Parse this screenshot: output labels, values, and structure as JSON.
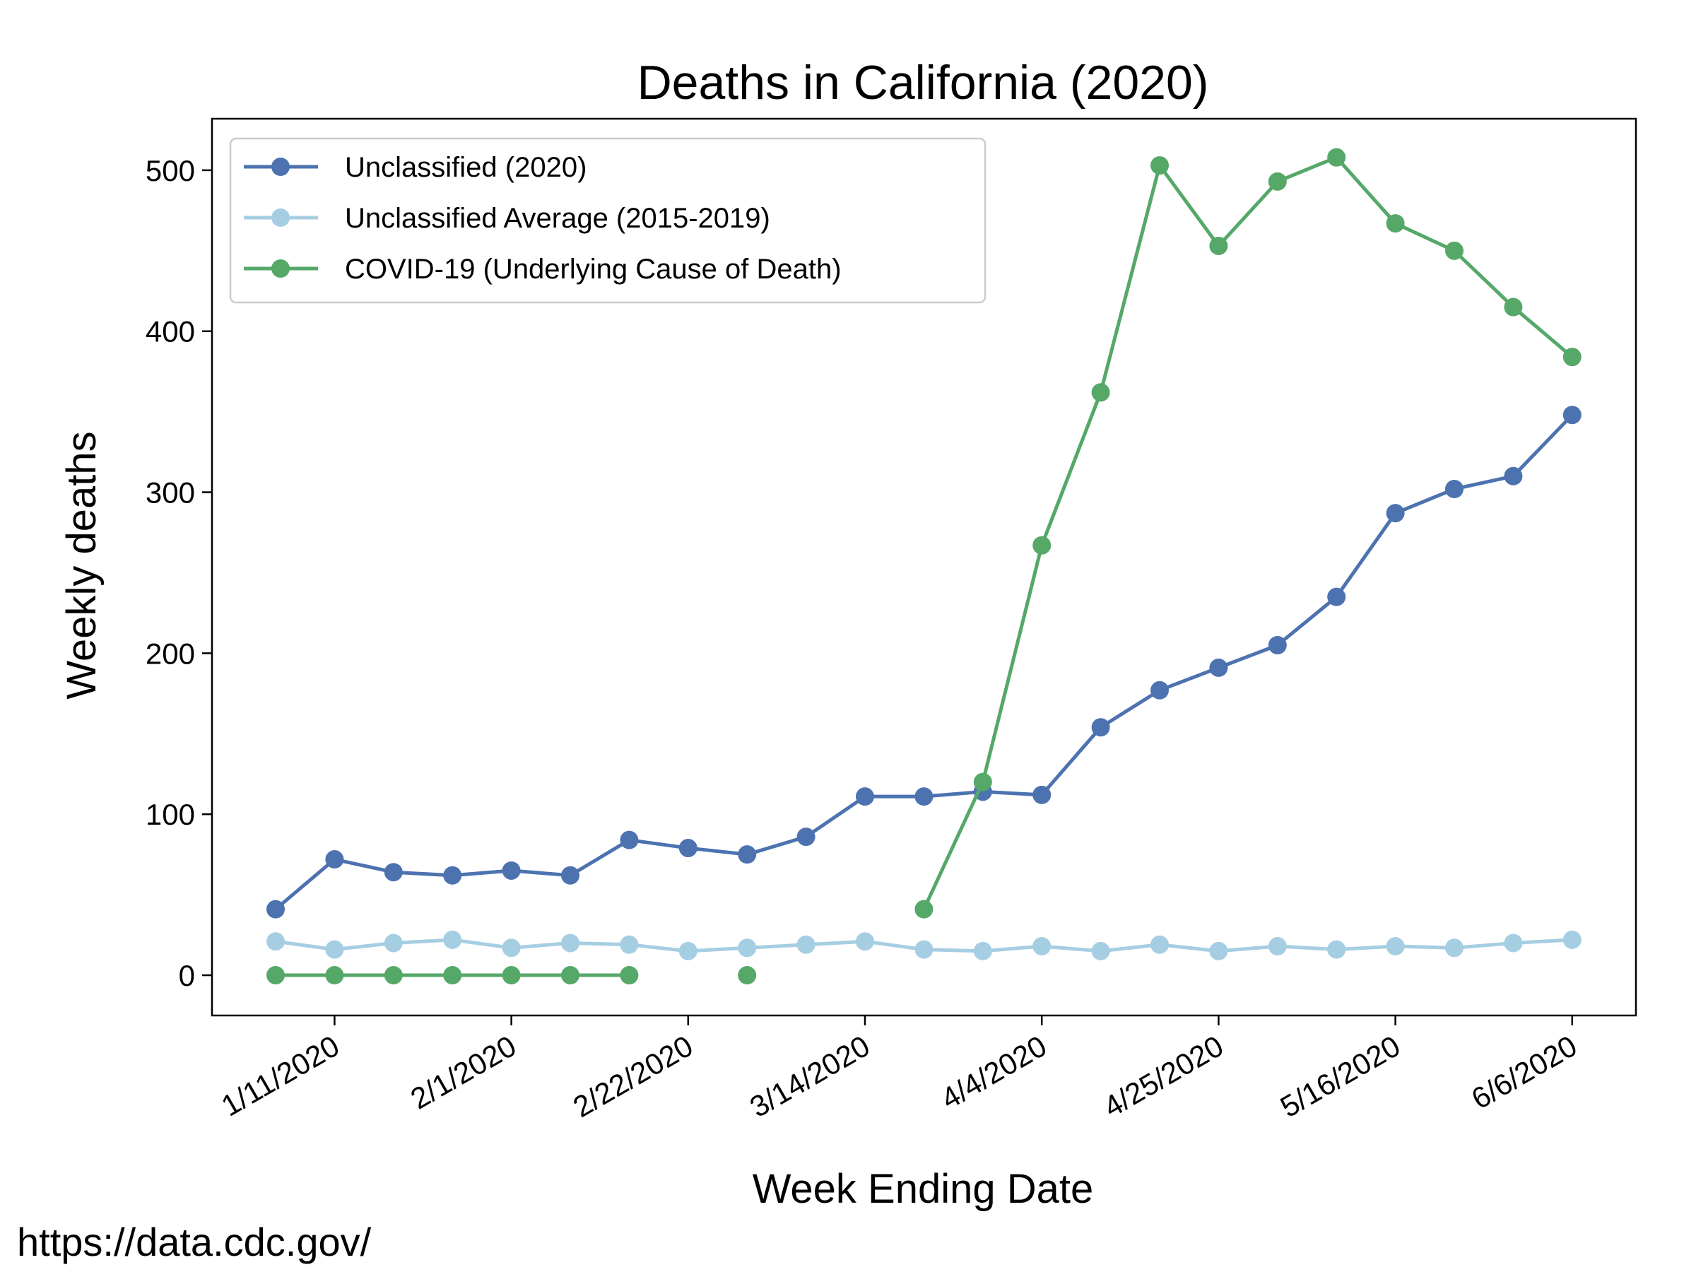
{
  "source_text": "https://data.cdc.gov/",
  "chart_data": {
    "type": "line",
    "title": "Deaths in California (2020)",
    "xlabel": "Week Ending Date",
    "ylabel": "Weekly deaths",
    "x": [
      "1/4/2020",
      "1/11/2020",
      "1/18/2020",
      "1/25/2020",
      "2/1/2020",
      "2/8/2020",
      "2/15/2020",
      "2/22/2020",
      "2/29/2020",
      "3/7/2020",
      "3/14/2020",
      "3/21/2020",
      "3/28/2020",
      "4/4/2020",
      "4/11/2020",
      "4/18/2020",
      "4/25/2020",
      "5/2/2020",
      "5/9/2020",
      "5/16/2020",
      "5/23/2020",
      "5/30/2020",
      "6/6/2020"
    ],
    "xticks": [
      "1/11/2020",
      "2/1/2020",
      "2/22/2020",
      "3/14/2020",
      "4/4/2020",
      "4/25/2020",
      "5/16/2020",
      "6/6/2020"
    ],
    "ylim": [
      -25,
      532
    ],
    "yticks": [
      0,
      100,
      200,
      300,
      400,
      500
    ],
    "grid": false,
    "legend_position": "upper-left",
    "series": [
      {
        "name": "Unclassified (2020)",
        "color": "#4c72b0",
        "values": [
          41,
          72,
          64,
          62,
          65,
          62,
          84,
          79,
          75,
          86,
          111,
          111,
          114,
          112,
          154,
          177,
          191,
          205,
          235,
          287,
          302,
          310,
          348
        ]
      },
      {
        "name": "Unclassified Average (2015-2019)",
        "color": "#a6cee3",
        "values": [
          21,
          16,
          20,
          22,
          17,
          20,
          19,
          15,
          17,
          19,
          21,
          16,
          15,
          18,
          15,
          19,
          15,
          18,
          16,
          18,
          17,
          20,
          22
        ]
      },
      {
        "name": "COVID-19 (Underlying Cause of Death)",
        "color": "#55a868",
        "values": [
          0,
          0,
          0,
          0,
          0,
          0,
          0,
          null,
          0,
          null,
          null,
          41,
          120,
          267,
          362,
          503,
          453,
          493,
          508,
          467,
          450,
          415,
          384
        ]
      }
    ]
  }
}
